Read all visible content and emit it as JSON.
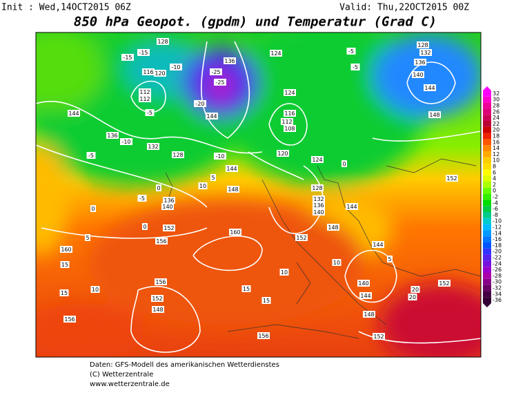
{
  "header": {
    "init": "Init : Wed,14OCT2015 06Z",
    "valid": "Valid: Thu,22OCT2015 00Z",
    "title": "850 hPa Geopot. (gpdm) und Temperatur (Grad C)"
  },
  "colorbar": {
    "ticks": [
      32,
      30,
      28,
      26,
      24,
      22,
      20,
      18,
      16,
      14,
      12,
      10,
      8,
      6,
      4,
      2,
      0,
      -2,
      -4,
      -6,
      -8,
      -10,
      -12,
      -14,
      -16,
      -18,
      -20,
      -22,
      -24,
      -26,
      -28,
      -30,
      -32,
      -34,
      -36
    ]
  },
  "map": {
    "labels": [
      "128",
      "120",
      "116",
      "112",
      "112",
      "-15",
      "-15",
      "-10",
      "-5",
      "144",
      "136",
      "132",
      "128",
      "-10",
      "-5",
      "136",
      "140",
      "152",
      "156",
      "160",
      "160",
      "156",
      "152",
      "148",
      "156",
      "156",
      "15",
      "15",
      "15",
      "10",
      "10",
      "15",
      "124",
      "124",
      "116",
      "112",
      "108",
      "120",
      "124",
      "128",
      "132",
      "136",
      "140",
      "144",
      "148",
      "152",
      "144",
      "140",
      "144",
      "148",
      "152",
      "20",
      "20",
      "152",
      "128",
      "132",
      "136",
      "140",
      "144",
      "148",
      "152",
      "-25",
      "-25",
      "-20",
      "144",
      "136",
      "-10",
      "144",
      "148",
      "-5",
      "-5",
      "0",
      "5",
      "10",
      "0",
      "-5",
      "0",
      "0",
      "5",
      "5",
      "10"
    ]
  },
  "footer": {
    "lines": [
      "Daten: GFS-Modell des amerikanischen Wetterdienstes",
      "(C) Wetterzentrale",
      "www.wetterzentrale.de"
    ]
  }
}
